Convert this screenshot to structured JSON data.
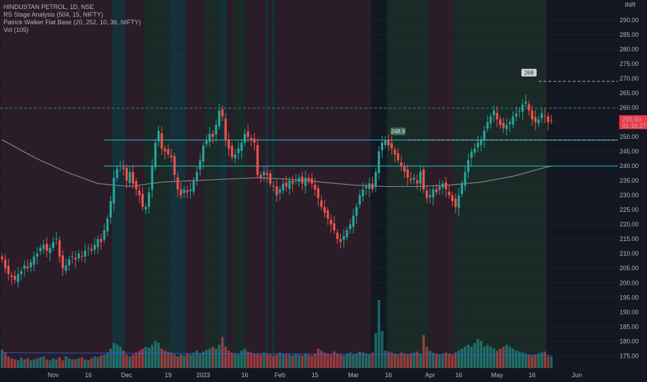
{
  "header": {
    "symbol_line": "HINDUSTAN PETROL, 1D, NSE",
    "indicators": [
      "RS Stage Analysis (504, 15, NIFTY)",
      "Patrick Walker Flat Base (20, 252, 10, 36, NIFTY)",
      "Vol (105)"
    ]
  },
  "chart_data": {
    "type": "candlestick",
    "currency": "INR",
    "y_axis": {
      "range": [
        172,
        294
      ],
      "ticks": [
        "290.00",
        "285.00",
        "280.00",
        "275.00",
        "270.00",
        "265.00",
        "260.00",
        "255.00",
        "250.00",
        "245.00",
        "240.00",
        "235.00",
        "230.00",
        "225.00",
        "220.00",
        "215.00",
        "210.00",
        "205.00",
        "200.00",
        "195.00",
        "190.00",
        "185.00",
        "180.00",
        "175.00"
      ]
    },
    "x_axis": {
      "ticks": [
        {
          "label": "Nov",
          "bar": 16
        },
        {
          "label": "16",
          "bar": 27
        },
        {
          "label": "Dec",
          "bar": 39
        },
        {
          "label": "19",
          "bar": 52
        },
        {
          "label": "2023",
          "bar": 63
        },
        {
          "label": "16",
          "bar": 76
        },
        {
          "label": "Feb",
          "bar": 87
        },
        {
          "label": "15",
          "bar": 98
        },
        {
          "label": "Mar",
          "bar": 110
        },
        {
          "label": "16",
          "bar": 121
        },
        {
          "label": "Apr",
          "bar": 134
        },
        {
          "label": "16",
          "bar": 143
        },
        {
          "label": "May",
          "bar": 155
        },
        {
          "label": "16",
          "bar": 166
        },
        {
          "label": "Jun",
          "bar": 180
        }
      ]
    },
    "last_price": {
      "value": 255.5,
      "label": "255.50",
      "countdown": "01:16:27"
    },
    "price_levels": [
      {
        "value": 259.8,
        "style": "dashed"
      },
      {
        "value": 248.9,
        "style": "solid"
      },
      {
        "value": 240.0,
        "style": "solid"
      }
    ],
    "markers": [
      {
        "bar": 124,
        "value": 248.9,
        "label": "248.9"
      },
      {
        "bar": 165,
        "value": 269,
        "label": "269"
      }
    ],
    "stage_bands": [
      {
        "from": 0,
        "to": 35,
        "stage": "decline"
      },
      {
        "from": 35,
        "to": 39,
        "stage": "teal"
      },
      {
        "from": 39,
        "to": 45,
        "stage": "decline"
      },
      {
        "from": 45,
        "to": 53,
        "stage": "advance"
      },
      {
        "from": 53,
        "to": 58,
        "stage": "teal"
      },
      {
        "from": 58,
        "to": 64,
        "stage": "decline"
      },
      {
        "from": 64,
        "to": 69,
        "stage": "advance"
      },
      {
        "from": 69,
        "to": 71,
        "stage": "teal"
      },
      {
        "from": 71,
        "to": 73,
        "stage": "decline"
      },
      {
        "from": 73,
        "to": 77,
        "stage": "advance"
      },
      {
        "from": 77,
        "to": 83,
        "stage": "decline"
      },
      {
        "from": 83,
        "to": 84,
        "stage": "teal"
      },
      {
        "from": 84,
        "to": 85,
        "stage": "decline"
      },
      {
        "from": 85,
        "to": 86,
        "stage": "teal"
      },
      {
        "from": 86,
        "to": 88,
        "stage": "decline"
      },
      {
        "from": 88,
        "to": 116,
        "stage": "decline"
      },
      {
        "from": 116,
        "to": 121,
        "stage": "dark"
      },
      {
        "from": 121,
        "to": 134,
        "stage": "advance"
      },
      {
        "from": 134,
        "to": 142,
        "stage": "decline"
      },
      {
        "from": 142,
        "to": 147,
        "stage": "advance"
      },
      {
        "from": 147,
        "to": 171,
        "stage": "advance"
      }
    ],
    "ma_series": [
      {
        "bar": 0,
        "value": 249
      },
      {
        "bar": 10,
        "value": 243
      },
      {
        "bar": 20,
        "value": 238
      },
      {
        "bar": 30,
        "value": 234
      },
      {
        "bar": 40,
        "value": 233
      },
      {
        "bar": 50,
        "value": 234.5
      },
      {
        "bar": 60,
        "value": 235
      },
      {
        "bar": 70,
        "value": 235.5
      },
      {
        "bar": 80,
        "value": 236
      },
      {
        "bar": 90,
        "value": 235.5
      },
      {
        "bar": 100,
        "value": 234.5
      },
      {
        "bar": 110,
        "value": 233.5
      },
      {
        "bar": 120,
        "value": 233
      },
      {
        "bar": 130,
        "value": 233
      },
      {
        "bar": 140,
        "value": 233.5
      },
      {
        "bar": 150,
        "value": 234.5
      },
      {
        "bar": 160,
        "value": 236.5
      },
      {
        "bar": 170,
        "value": 239.5
      },
      {
        "bar": 172,
        "value": 240
      }
    ],
    "closes": [
      208,
      205,
      203,
      202,
      201,
      203,
      204,
      206,
      205,
      207,
      209,
      210,
      212,
      213,
      211,
      212,
      214,
      215,
      209,
      205,
      206,
      208,
      209,
      208,
      210,
      209,
      211,
      212,
      211,
      213,
      215,
      214,
      218,
      222,
      228,
      236,
      239,
      240,
      239,
      235,
      238,
      234,
      232,
      230,
      226,
      226,
      231,
      240,
      248,
      252,
      246,
      245,
      244,
      243,
      237,
      232,
      230,
      232,
      231,
      232,
      235,
      238,
      242,
      247,
      249,
      251,
      250,
      254,
      259,
      257,
      249,
      246,
      243,
      244,
      246,
      248,
      251,
      250,
      249,
      248,
      237,
      236,
      238,
      237,
      234,
      233,
      230,
      232,
      234,
      233,
      235,
      234,
      235,
      236,
      234,
      236,
      235,
      234,
      232,
      229,
      226,
      224,
      222,
      220,
      218,
      215,
      214,
      216,
      218,
      220,
      223,
      226,
      230,
      232,
      233,
      234,
      232,
      238,
      245,
      248,
      249,
      247,
      246,
      244,
      242,
      240,
      238,
      236,
      235,
      236,
      234,
      238,
      232,
      229,
      230,
      232,
      231,
      233,
      234,
      232,
      230,
      228,
      226,
      230,
      234,
      238,
      242,
      245,
      246,
      248,
      249,
      252,
      255,
      257,
      259,
      256,
      254,
      253,
      254,
      255,
      257,
      258,
      259,
      261,
      262,
      259,
      256,
      255,
      256,
      258,
      257,
      255,
      255.5
    ],
    "volume": {
      "range": [
        0,
        100
      ],
      "ma_level": 16,
      "values": [
        19,
        16,
        12,
        10,
        9,
        8,
        11,
        9,
        10,
        8,
        9,
        10,
        11,
        12,
        9,
        8,
        10,
        9,
        11,
        8,
        12,
        10,
        9,
        9,
        10,
        11,
        9,
        8,
        10,
        12,
        11,
        13,
        14,
        16,
        20,
        26,
        24,
        22,
        18,
        14,
        12,
        14,
        16,
        18,
        20,
        22,
        21,
        24,
        28,
        26,
        20,
        18,
        17,
        16,
        14,
        12,
        14,
        13,
        15,
        14,
        16,
        18,
        15,
        17,
        19,
        20,
        22,
        20,
        24,
        32,
        22,
        18,
        16,
        15,
        14,
        18,
        20,
        17,
        16,
        15,
        15,
        14,
        16,
        15,
        14,
        13,
        14,
        16,
        15,
        14,
        14,
        13,
        15,
        14,
        13,
        15,
        14,
        13,
        15,
        20,
        18,
        16,
        15,
        14,
        17,
        15,
        14,
        13,
        15,
        16,
        14,
        15,
        17,
        16,
        15,
        14,
        16,
        36,
        70,
        38,
        18,
        17,
        16,
        15,
        14,
        16,
        15,
        14,
        15,
        16,
        17,
        15,
        34,
        22,
        18,
        16,
        15,
        14,
        15,
        16,
        15,
        14,
        16,
        18,
        20,
        22,
        24,
        22,
        26,
        30,
        28,
        22,
        24,
        22,
        20,
        18,
        20,
        22,
        24,
        22,
        20,
        18,
        17,
        16,
        15,
        14,
        13,
        14,
        15,
        16,
        17,
        12,
        12
      ]
    }
  }
}
